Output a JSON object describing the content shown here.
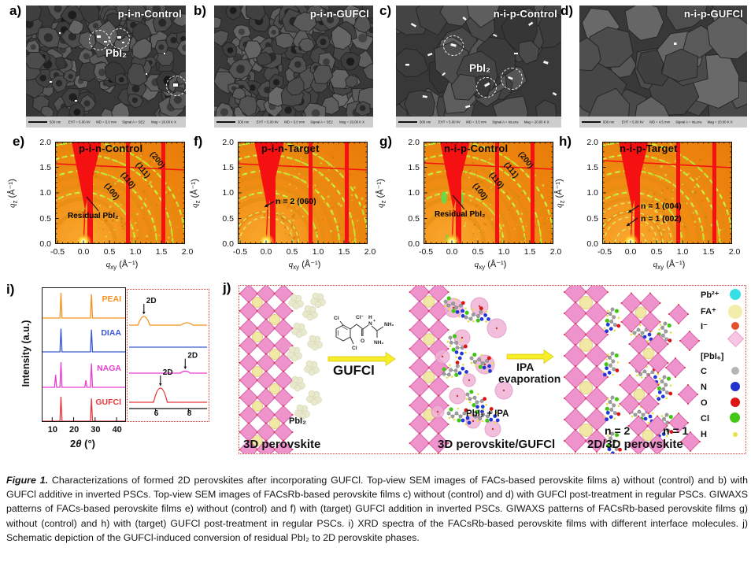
{
  "sem_panels": [
    {
      "letter": "a)",
      "title": "p-i-n-Control",
      "pbi2_label": "PbI₂",
      "infobar": "500 nm        EHT = 5.00 kV      WD = 5.0 mm      Signal A = SE2       Mag = 20.00 K X"
    },
    {
      "letter": "b)",
      "title": "p-i-n-GUFCl",
      "infobar": "500 nm        EHT = 5.00 kV      WD = 5.0 mm      Signal A = SE2       Mag = 20.00 K X"
    },
    {
      "letter": "c)",
      "title": "n-i-p-Control",
      "pbi2_label": "PbI₂",
      "infobar": "500 nm        EHT = 5.00 kV      WD = 3.5 mm      Signal A = InLens      Mag = 20.00 K X"
    },
    {
      "letter": "d)",
      "title": "n-i-p-GUFCl",
      "infobar": "500 nm        EHT = 5.00 kV      WD = 4.5 mm      Signal A = InLens      Mag = 20.00 K X"
    }
  ],
  "giwaxs": {
    "y_ticks": [
      "2.0",
      "1.5",
      "1.0",
      "0.5",
      "0.0"
    ],
    "x_ticks": [
      "-0.5",
      "0.0",
      "0.5",
      "1.0",
      "1.5",
      "2.0"
    ],
    "xlabel": {
      "q": "q",
      "sub": "xy",
      "unit": " (Å⁻¹)"
    },
    "ylabel": {
      "q": "q",
      "sub": "z",
      "unit": " (Å⁻¹)"
    },
    "panels": [
      {
        "letter": "e)",
        "title": "p-i-n-Control",
        "rings": [
          "(100)",
          "(110)",
          "(111)",
          "(200)"
        ],
        "annotation": "Residual PbI₂"
      },
      {
        "letter": "f)",
        "title": "p-i-n-Target",
        "annotation": "n = 2 (060)"
      },
      {
        "letter": "g)",
        "title": "n-i-p-Control",
        "rings": [
          "(100)",
          "(110)",
          "(111)",
          "(200)"
        ],
        "annotation": "Residual PbI₂"
      },
      {
        "letter": "h)",
        "title": "n-i-p-Target",
        "annotation_1": "n = 1 (004)",
        "annotation_2": "n = 1 (002)"
      }
    ]
  },
  "xrd": {
    "letter": "i)",
    "ylabel": "Intensity (a.u.)",
    "xlabel_num": "2",
    "xlabel_theta": "θ",
    "xlabel_unit": " (°)"
  },
  "schematic": {
    "letter": "j)",
    "pbi2": "PbI₂",
    "stage_1": "3D perovskite",
    "reagent": "GUFCl",
    "pbi2_ipa": "PbI₂ + IPA",
    "stage_2": "3D perovskite/GUFCl",
    "arrow_2_line_1": "IPA",
    "arrow_2_line_2": "evaporation",
    "n2": "n = 2",
    "n1": "n = 1",
    "stage_3": "2D/3D perovskite",
    "molecule": {
      "cl_top": "Cl",
      "cl_ion": "Cl⁻",
      "cl_bottom": "Cl",
      "o": "O",
      "h": "H",
      "n": "N",
      "plus": "+",
      "nh2_right": "NH₂",
      "nh2_bottom": "NH₂"
    },
    "legend": [
      {
        "label": "Pb²⁺"
      },
      {
        "label": "FA⁺"
      },
      {
        "label": "I⁻"
      },
      {
        "label": "[PbI₆]"
      },
      {
        "label": "C"
      },
      {
        "label": "N"
      },
      {
        "label": "O"
      },
      {
        "label": "Cl"
      },
      {
        "label": "H"
      }
    ]
  },
  "caption": {
    "label": "Figure 1.",
    "text": "Characterizations of formed 2D perovskites after incorporating GUFCl. Top-view SEM images of FACs-based perovskite films a) without (control) and b) with GUFCl additive in inverted PSCs. Top-view SEM images of FACsRb-based perovskite films c) without (control) and d) with GUFCl post-treatment in regular PSCs. GIWAXS patterns of FACs-based perovskite films e) without (control) and f) with (target) GUFCl addition in inverted PSCs. GIWAXS patterns of FACsRb-based perovskite films g) without (control) and h) with (target) GUFCl post-treatment in regular PSCs. i) XRD spectra of the FACsRb-based perovskite films with different interface molecules. j) Schematic depiction of the GUFCl-induced conversion of residual PbI₂ to 2D perovskite phases."
  },
  "chart_data": [
    {
      "id": "xrd_main",
      "type": "line",
      "title": "XRD spectra of FACsRb-based perovskite films",
      "xlabel": "2θ (°)",
      "ylabel": "Intensity (a.u.)",
      "xlim": [
        5.5,
        44
      ],
      "x_ticks": [
        10,
        20,
        30,
        40
      ],
      "grid": false,
      "series": [
        {
          "name": "PEAI",
          "color": "#f5921e",
          "baseline": 38,
          "peaks": [
            {
              "x": 14.1,
              "h": 1.0
            },
            {
              "x": 28.3,
              "h": 0.95
            }
          ]
        },
        {
          "name": "DIAA",
          "color": "#3a57d8",
          "baseline": 81,
          "peaks": [
            {
              "x": 14.1,
              "h": 0.92
            },
            {
              "x": 28.3,
              "h": 0.88
            }
          ]
        },
        {
          "name": "NAGA",
          "color": "#e93fd1",
          "baseline": 126,
          "peaks": [
            {
              "x": 11.6,
              "h": 0.5
            },
            {
              "x": 14.1,
              "h": 1.0
            },
            {
              "x": 25.7,
              "h": 0.28
            },
            {
              "x": 28.3,
              "h": 0.95
            }
          ]
        },
        {
          "name": "GUFCl",
          "color": "#e8383f",
          "baseline": 169,
          "peaks": [
            {
              "x": 14.1,
              "h": 0.97
            },
            {
              "x": 28.3,
              "h": 0.9
            }
          ]
        }
      ]
    },
    {
      "id": "xrd_inset",
      "type": "line",
      "xlabel": "2θ (°)",
      "xlim": [
        4.5,
        9.2
      ],
      "x_ticks": [
        6,
        8
      ],
      "annotation_label": "2D",
      "series": [
        {
          "name": "PEAI",
          "color": "#f5921e",
          "baseline": 45,
          "peaks": [
            {
              "x": 5.3,
              "h": 0.55,
              "w": 3
            },
            {
              "x": 7.9,
              "h": 0.15,
              "w": 3
            }
          ],
          "ann_x": 5.3
        },
        {
          "name": "DIAA",
          "color": "#3a57d8",
          "baseline": 73,
          "peaks": []
        },
        {
          "name": "NAGA",
          "color": "#e93fd1",
          "baseline": 106,
          "peaks": [
            {
              "x": 7.8,
              "h": 0.12,
              "w": 2.5
            }
          ],
          "ann_x": 7.8
        },
        {
          "name": "GUFCl",
          "color": "#e8383f",
          "baseline": 143,
          "peaks": [
            {
              "x": 6.3,
              "h": 0.9,
              "w": 3.5
            }
          ],
          "ann_x": 6.3
        }
      ]
    },
    {
      "id": "giwaxs",
      "type": "heatmap",
      "xlabel": "q_xy (Å⁻¹)",
      "ylabel": "q_z (Å⁻¹)",
      "xlim": [
        -0.55,
        1.95
      ],
      "ylim": [
        0,
        2.0
      ],
      "ring_q": [
        1.0,
        1.42,
        1.73,
        1.98
      ],
      "panels": [
        {
          "title": "p-i-n-Control",
          "ring_labels": [
            "(100)",
            "(110)",
            "(111)",
            "(200)"
          ],
          "annotation": "Residual PbI₂"
        },
        {
          "title": "p-i-n-Target",
          "extra_ring_q": [
            0.52,
            0.63
          ],
          "annotation": "n = 2 (060)"
        },
        {
          "title": "n-i-p-Control",
          "ring_labels": [
            "(100)",
            "(110)",
            "(111)",
            "(200)"
          ],
          "annotation": "Residual PbI₂"
        },
        {
          "title": "n-i-p-Target",
          "extra_ring_q": [
            0.3,
            0.52,
            0.63,
            0.8
          ],
          "annotations": [
            "n = 1 (004)",
            "n = 1 (002)"
          ]
        }
      ]
    }
  ]
}
